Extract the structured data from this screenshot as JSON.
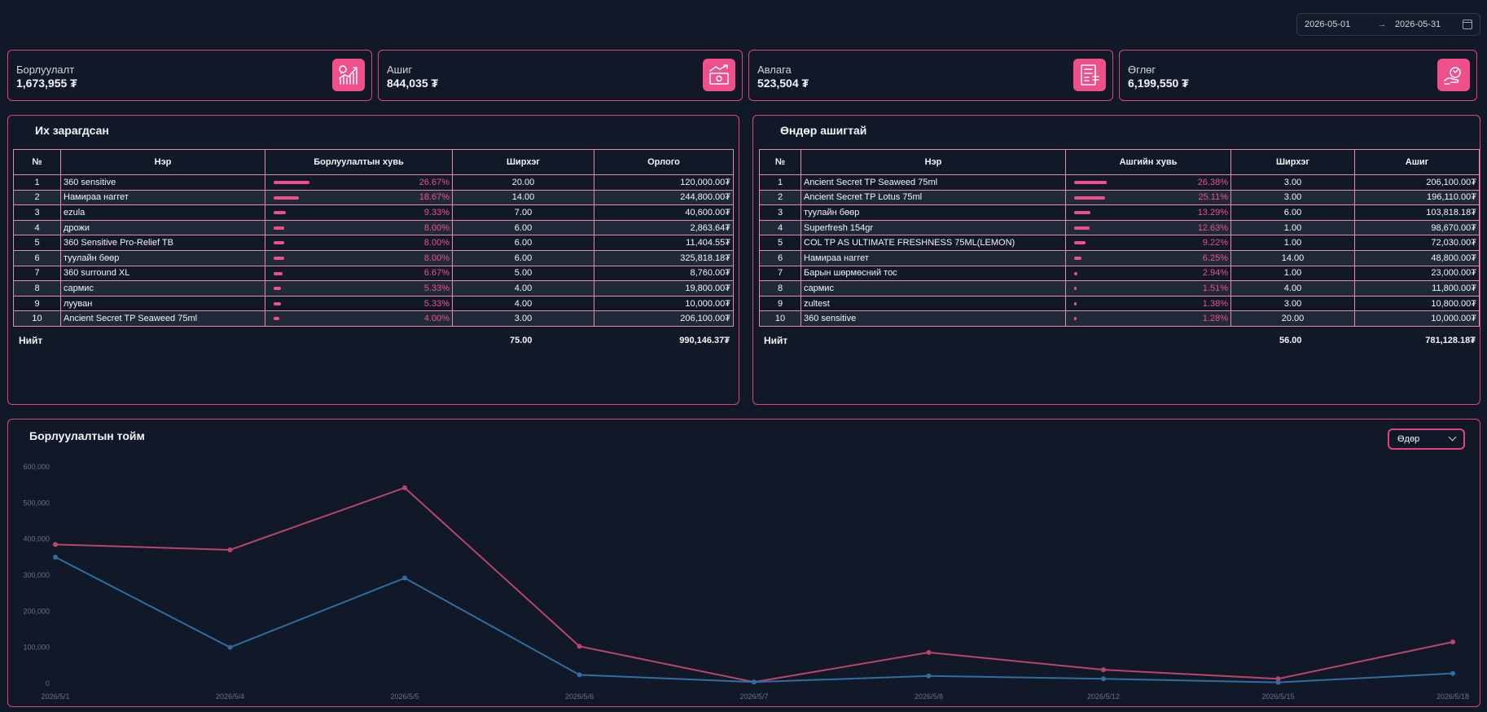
{
  "date_range": {
    "start": "2026-05-01",
    "arrow": "→",
    "end": "2026-05-31"
  },
  "cards": [
    {
      "label": "Борлуулалт",
      "value": "1,673,955 ₮",
      "icon": "sales-chart-icon"
    },
    {
      "label": "Ашиг",
      "value": "844,035 ₮",
      "icon": "profit-trend-icon"
    },
    {
      "label": "Авлага",
      "value": "523,504 ₮",
      "icon": "invoice-icon"
    },
    {
      "label": "Өглөг",
      "value": "6,199,550 ₮",
      "icon": "payment-hand-icon"
    }
  ],
  "top_selling": {
    "title": "Их зарагдсан",
    "headers": [
      "№",
      "Нэр",
      "Борлуулалтын хувь",
      "Ширхэг",
      "Орлого"
    ],
    "rows": [
      {
        "no": "1",
        "name": "360 sensitive",
        "pct": "26.67%",
        "pct_value": 26.67,
        "qty": "20.00",
        "amount": "120,000.00₮"
      },
      {
        "no": "2",
        "name": "Намираа наггет",
        "pct": "18.67%",
        "pct_value": 18.67,
        "qty": "14.00",
        "amount": "244,800.00₮"
      },
      {
        "no": "3",
        "name": "ezula",
        "pct": "9.33%",
        "pct_value": 9.33,
        "qty": "7.00",
        "amount": "40,600.00₮"
      },
      {
        "no": "4",
        "name": "дрожи",
        "pct": "8.00%",
        "pct_value": 8.0,
        "qty": "6.00",
        "amount": "2,863.64₮"
      },
      {
        "no": "5",
        "name": "360 Sensitive Pro-Relief TB",
        "pct": "8.00%",
        "pct_value": 8.0,
        "qty": "6.00",
        "amount": "11,404.55₮"
      },
      {
        "no": "6",
        "name": "туулайн бөөр",
        "pct": "8.00%",
        "pct_value": 8.0,
        "qty": "6.00",
        "amount": "325,818.18₮"
      },
      {
        "no": "7",
        "name": "360 surround XL",
        "pct": "6.67%",
        "pct_value": 6.67,
        "qty": "5.00",
        "amount": "8,760.00₮"
      },
      {
        "no": "8",
        "name": "сармис",
        "pct": "5.33%",
        "pct_value": 5.33,
        "qty": "4.00",
        "amount": "19,800.00₮"
      },
      {
        "no": "9",
        "name": "лууван",
        "pct": "5.33%",
        "pct_value": 5.33,
        "qty": "4.00",
        "amount": "10,000.00₮"
      },
      {
        "no": "10",
        "name": "Ancient Secret TP Seaweed 75ml",
        "pct": "4.00%",
        "pct_value": 4.0,
        "qty": "3.00",
        "amount": "206,100.00₮"
      }
    ],
    "total_label": "Нийт",
    "total_qty": "75.00",
    "total_amount": "990,146.37₮"
  },
  "top_profit": {
    "title": "Өндөр ашигтай",
    "headers": [
      "№",
      "Нэр",
      "Ашгийн хувь",
      "Ширхэг",
      "Ашиг"
    ],
    "rows": [
      {
        "no": "1",
        "name": "Ancient Secret TP Seaweed 75ml",
        "pct": "26.38%",
        "pct_value": 26.38,
        "qty": "3.00",
        "amount": "206,100.00₮"
      },
      {
        "no": "2",
        "name": "Ancient Secret TP Lotus 75ml",
        "pct": "25.11%",
        "pct_value": 25.11,
        "qty": "3.00",
        "amount": "196,110.00₮"
      },
      {
        "no": "3",
        "name": "туулайн бөөр",
        "pct": "13.29%",
        "pct_value": 13.29,
        "qty": "6.00",
        "amount": "103,818.18₮"
      },
      {
        "no": "4",
        "name": "Superfresh 154gr",
        "pct": "12.63%",
        "pct_value": 12.63,
        "qty": "1.00",
        "amount": "98,670.00₮"
      },
      {
        "no": "5",
        "name": "COL TP AS ULTIMATE FRESHNESS 75ML(LEMON)",
        "pct": "9.22%",
        "pct_value": 9.22,
        "qty": "1.00",
        "amount": "72,030.00₮"
      },
      {
        "no": "6",
        "name": "Намираа наггет",
        "pct": "6.25%",
        "pct_value": 6.25,
        "qty": "14.00",
        "amount": "48,800.00₮"
      },
      {
        "no": "7",
        "name": "Барын шөрмөсний тос",
        "pct": "2.94%",
        "pct_value": 2.94,
        "qty": "1.00",
        "amount": "23,000.00₮"
      },
      {
        "no": "8",
        "name": "сармис",
        "pct": "1.51%",
        "pct_value": 1.51,
        "qty": "4.00",
        "amount": "11,800.00₮"
      },
      {
        "no": "9",
        "name": "zultest",
        "pct": "1.38%",
        "pct_value": 1.38,
        "qty": "3.00",
        "amount": "10,800.00₮"
      },
      {
        "no": "10",
        "name": "360 sensitive",
        "pct": "1.28%",
        "pct_value": 1.28,
        "qty": "20.00",
        "amount": "10,000.00₮"
      }
    ],
    "total_label": "Нийт",
    "total_qty": "56.00",
    "total_amount": "781,128.18₮"
  },
  "overview": {
    "title": "Борлуулалтын тойм",
    "period_select": "Өдөр"
  },
  "chart_data": {
    "type": "line",
    "categories": [
      "2026/5/1",
      "2026/5/4",
      "2026/5/5",
      "2026/5/6",
      "2026/5/7",
      "2026/5/8",
      "2026/5/12",
      "2026/5/15",
      "2026/5/18"
    ],
    "y_ticks": [
      "600,000",
      "500,000",
      "400,000",
      "300,000",
      "200,000",
      "100,000",
      "0"
    ],
    "ylim": [
      0,
      600000
    ],
    "grid": false,
    "series": [
      {
        "color": "#b8456a",
        "values": [
          385000,
          370000,
          542000,
          103000,
          4000,
          86000,
          38000,
          13000,
          115000
        ]
      },
      {
        "color": "#2f6e9e",
        "values": [
          350000,
          100000,
          292000,
          24000,
          4000,
          21000,
          13000,
          3000,
          28000
        ]
      }
    ]
  }
}
